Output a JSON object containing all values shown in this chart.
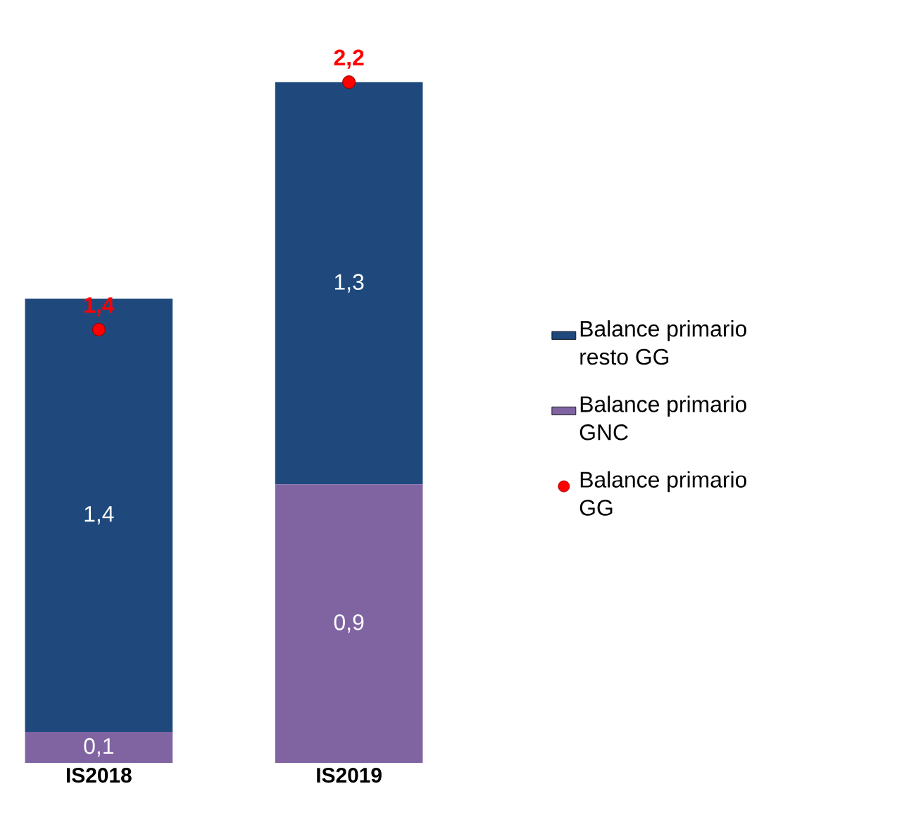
{
  "chart_data": {
    "type": "bar",
    "stacked": true,
    "categories": [
      "IS2018",
      "IS2019"
    ],
    "legend": "right",
    "series": [
      {
        "name": "Balance primario GNC",
        "color": "#8064a2",
        "values": [
          0.1,
          0.9
        ],
        "value_labels": [
          "0,1",
          "0,9"
        ]
      },
      {
        "name": "Balance primario resto GG",
        "color": "#1f497d",
        "values": [
          1.4,
          1.3
        ],
        "value_labels": [
          "1,4",
          "1,3"
        ]
      },
      {
        "name": "Balance primario GG",
        "type": "scatter",
        "color": "#ff0000",
        "values": [
          1.4,
          2.2
        ],
        "value_labels": [
          "1,4",
          "2,2"
        ]
      }
    ]
  }
}
